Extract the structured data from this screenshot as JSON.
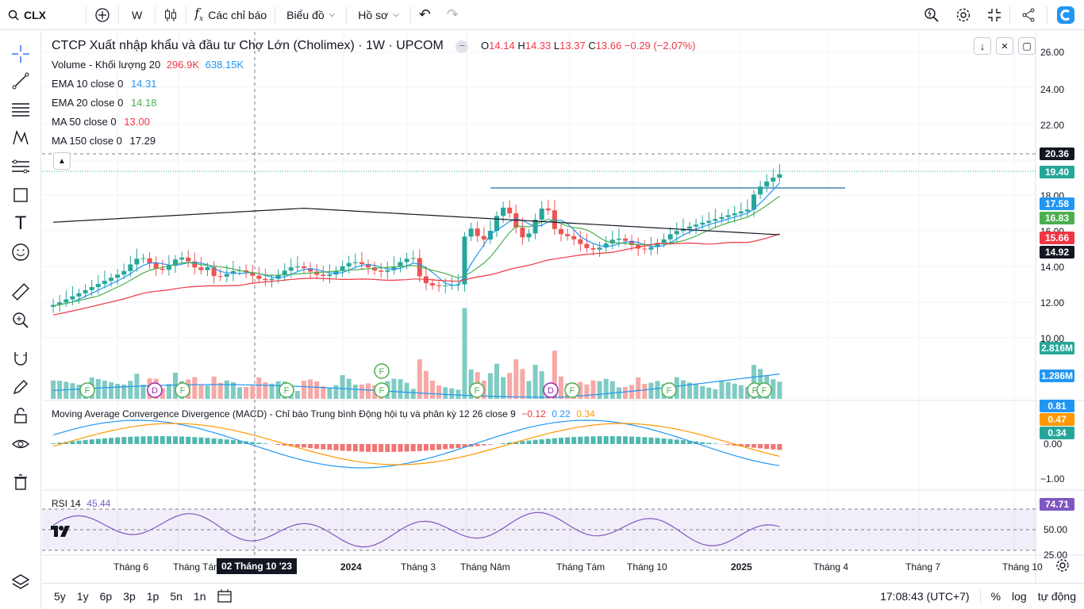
{
  "topbar": {
    "symbol": "CLX",
    "interval": "W",
    "indicators_label": "Các chỉ báo",
    "chart_label": "Biểu đồ",
    "profile_label": "Hồ sơ"
  },
  "legend": {
    "title": "CTCP Xuất nhập khẩu và đầu tư Chợ Lớn (Cholimex) · 1W · UPCOM",
    "o_label": "O",
    "o": "14.14",
    "h_label": "H",
    "h": "14.33",
    "l_label": "L",
    "l": "13.37",
    "c_label": "C",
    "c": "13.66",
    "change": "−0.29 (−2.07%)",
    "volume": {
      "name": "Volume - Khối lượng 20",
      "v1": "296.9K",
      "v2": "638.15K"
    },
    "ema10": {
      "name": "EMA 10 close 0",
      "value": "14.31"
    },
    "ema20": {
      "name": "EMA 20 close 0",
      "value": "14.18"
    },
    "ma50": {
      "name": "MA 50 close 0",
      "value": "13.00"
    },
    "ma150": {
      "name": "MA 150 close 0",
      "value": "17.29"
    }
  },
  "macd": {
    "name": "Moving Average Convergence Divergence (MACD) - Chỉ báo Trung bình Động hội tụ và phân kỳ 12 26 close 9",
    "v1": "−0.12",
    "v2": "0.22",
    "v3": "0.34"
  },
  "rsi": {
    "name": "RSI 14",
    "value": "45.44"
  },
  "price_axis": [
    "26.00",
    "24.00",
    "22.00",
    "18.00",
    "16.00",
    "14.00",
    "12.00",
    "10.00"
  ],
  "price_labels": {
    "p1": "20.36",
    "p2": "19.40",
    "p3": "17.58",
    "p4": "16.83",
    "p5": "15.66",
    "p6": "14.92",
    "vol1": "2.816M",
    "vol2": "1.286M",
    "m1": "0.81",
    "m2": "0.47",
    "m3": "0.34",
    "m0": "0.00",
    "mneg": "−1.00",
    "rsi_top": "74.71",
    "rsi_mid": "50.00",
    "rsi_low": "25.00"
  },
  "time_axis": [
    "Tháng 6",
    "Tháng Tám",
    "2024",
    "Tháng 3",
    "Tháng Năm",
    "Tháng Tám",
    "Tháng 10",
    "2025",
    "Tháng 4",
    "Tháng 7",
    "Tháng 10"
  ],
  "crosshair_date": "02 Tháng 10 '23",
  "bottombar": {
    "ranges": [
      "5y",
      "1y",
      "6p",
      "3p",
      "1p",
      "5n",
      "1n"
    ],
    "time": "17:08:43 (UTC+7)",
    "percent": "%",
    "log": "log",
    "auto": "tự động"
  },
  "colors": {
    "up": "#26a69a",
    "down": "#ef5350",
    "ema10": "#2196f3",
    "ema20": "#4caf50",
    "ma50": "#f23645",
    "ma150": "#131722",
    "rsi": "#7e57c2"
  }
}
